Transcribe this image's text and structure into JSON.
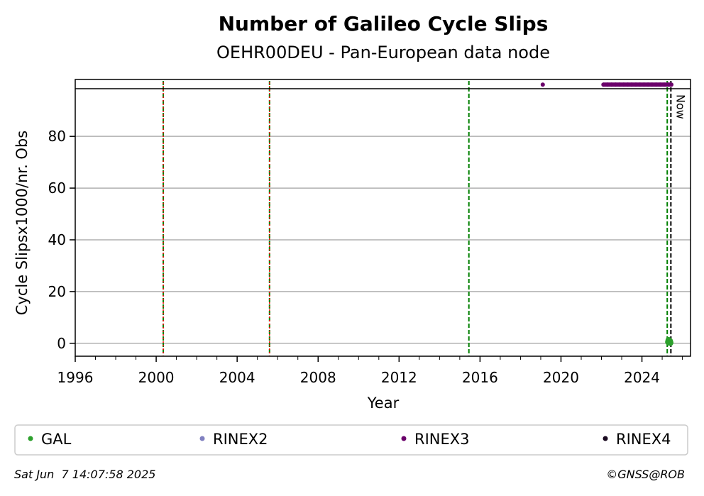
{
  "chart_data": {
    "type": "scatter",
    "title": "Number of Galileo Cycle Slips",
    "subtitle": "OEHR00DEU - Pan-European data node",
    "xlabel": "Year",
    "ylabel": "Cycle Slipsx1000/nr. Obs",
    "xlim": [
      1996,
      2026.4
    ],
    "ylim": [
      -5,
      102
    ],
    "x_ticks": [
      1996,
      2000,
      2004,
      2008,
      2012,
      2016,
      2020,
      2024
    ],
    "y_ticks": [
      0,
      20,
      40,
      60,
      80
    ],
    "grid": "horizontal",
    "top_band_y": 98,
    "series": [
      {
        "name": "GAL",
        "color": "#2ca02c",
        "points": [
          [
            2025.3,
            0.5
          ],
          [
            2025.32,
            1.2
          ],
          [
            2025.35,
            0.3
          ],
          [
            2025.38,
            0.8
          ],
          [
            2025.4,
            0.2
          ]
        ]
      },
      {
        "name": "RINEX2",
        "color": "#8080c0",
        "points": []
      },
      {
        "name": "RINEX3",
        "color": "#6a006a",
        "points": [
          [
            2019.1,
            100
          ],
          [
            2022.1,
            100
          ],
          [
            2022.3,
            100
          ],
          [
            2022.5,
            100
          ],
          [
            2022.7,
            100
          ],
          [
            2022.9,
            100
          ],
          [
            2023.1,
            100
          ],
          [
            2023.3,
            100
          ],
          [
            2023.5,
            100
          ],
          [
            2023.7,
            100
          ],
          [
            2023.9,
            100
          ],
          [
            2024.1,
            100
          ],
          [
            2024.3,
            100
          ],
          [
            2024.5,
            100
          ],
          [
            2024.7,
            100
          ],
          [
            2024.9,
            100
          ],
          [
            2025.1,
            100
          ],
          [
            2025.3,
            100
          ],
          [
            2025.45,
            100
          ]
        ]
      },
      {
        "name": "RINEX4",
        "color": "#1a0a20",
        "points": []
      }
    ],
    "vlines": [
      {
        "x": 2000.35,
        "color": "#008000",
        "dash": "dashed",
        "overlay_color": "#ff0000"
      },
      {
        "x": 2005.6,
        "color": "#008000",
        "dash": "dashed",
        "overlay_color": "#ff0000"
      },
      {
        "x": 2015.45,
        "color": "#008000",
        "dash": "dashed"
      },
      {
        "x": 2025.25,
        "color": "#008000",
        "dash": "dashed"
      },
      {
        "x": 2025.43,
        "color": "#000000",
        "dash": "dashed",
        "label": "Now"
      }
    ],
    "legend_position": "bottom"
  },
  "footer": {
    "timestamp": "Sat Jun  7 14:07:58 2025",
    "copyright": "©GNSS@ROB"
  }
}
